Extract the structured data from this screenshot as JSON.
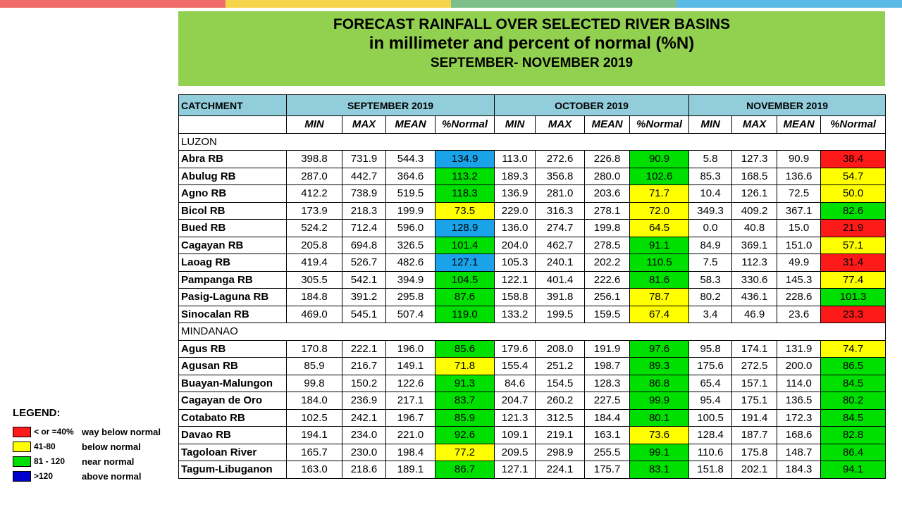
{
  "header": {
    "line1": "FORECAST RAINFALL OVER SELECTED RIVER BASINS",
    "line2": "in millimeter  and percent of normal (%N)",
    "line3": "SEPTEMBER- NOVEMBER 2019"
  },
  "colors": {
    "topbar": [
      "#f26b6b",
      "#f7d54a",
      "#7fbf8a",
      "#5bbbe6"
    ],
    "very_high": "#1aa3e8",
    "near_normal": "#00e000",
    "below_normal": "#ffff00",
    "way_below": "#ff1a1a",
    "above_normal_legend": "#0000cc"
  },
  "table": {
    "catchment_label": "CATCHMENT",
    "months": [
      "SEPTEMBER 2019",
      "OCTOBER 2019",
      "NOVEMBER 2019"
    ],
    "subheaders": [
      "MIN",
      "MAX",
      "MEAN",
      "%Normal"
    ],
    "groups": [
      {
        "region": "LUZON",
        "rows": [
          {
            "name": "Abra RB",
            "vals": [
              "398.8",
              "731.9",
              "544.3",
              "134.9",
              "113.0",
              "272.6",
              "226.8",
              "90.9",
              "5.8",
              "127.3",
              "90.9",
              "38.4"
            ],
            "cats": [
              "very_high",
              "near_normal",
              "way_below"
            ]
          },
          {
            "name": "Abulug RB",
            "vals": [
              "287.0",
              "442.7",
              "364.6",
              "113.2",
              "189.3",
              "356.8",
              "280.0",
              "102.6",
              "85.3",
              "168.5",
              "136.6",
              "54.7"
            ],
            "cats": [
              "near_normal",
              "near_normal",
              "below_normal"
            ]
          },
          {
            "name": "Agno RB",
            "vals": [
              "412.2",
              "738.9",
              "519.5",
              "118.3",
              "136.9",
              "281.0",
              "203.6",
              "71.7",
              "10.4",
              "126.1",
              "72.5",
              "50.0"
            ],
            "cats": [
              "near_normal",
              "below_normal",
              "below_normal"
            ]
          },
          {
            "name": "Bicol RB",
            "vals": [
              "173.9",
              "218.3",
              "199.9",
              "73.5",
              "229.0",
              "316.3",
              "278.1",
              "72.0",
              "349.3",
              "409.2",
              "367.1",
              "82.6"
            ],
            "cats": [
              "below_normal",
              "below_normal",
              "near_normal"
            ]
          },
          {
            "name": "Bued RB",
            "vals": [
              "524.2",
              "712.4",
              "596.0",
              "128.9",
              "136.0",
              "274.7",
              "199.8",
              "64.5",
              "0.0",
              "40.8",
              "15.0",
              "21.9"
            ],
            "cats": [
              "very_high",
              "below_normal",
              "way_below"
            ]
          },
          {
            "name": "Cagayan RB",
            "vals": [
              "205.8",
              "694.8",
              "326.5",
              "101.4",
              "204.0",
              "462.7",
              "278.5",
              "91.1",
              "84.9",
              "369.1",
              "151.0",
              "57.1"
            ],
            "cats": [
              "near_normal",
              "near_normal",
              "below_normal"
            ]
          },
          {
            "name": "Laoag RB",
            "vals": [
              "419.4",
              "526.7",
              "482.6",
              "127.1",
              "105.3",
              "240.1",
              "202.2",
              "110.5",
              "7.5",
              "112.3",
              "49.9",
              "31.4"
            ],
            "cats": [
              "very_high",
              "near_normal",
              "way_below"
            ]
          },
          {
            "name": "Pampanga RB",
            "vals": [
              "305.5",
              "542.1",
              "394.9",
              "104.5",
              "122.1",
              "401.4",
              "222.6",
              "81.6",
              "58.3",
              "330.6",
              "145.3",
              "77.4"
            ],
            "cats": [
              "near_normal",
              "near_normal",
              "below_normal"
            ]
          },
          {
            "name": "Pasig-Laguna RB",
            "vals": [
              "184.8",
              "391.2",
              "295.8",
              "87.6",
              "158.8",
              "391.8",
              "256.1",
              "78.7",
              "80.2",
              "436.1",
              "228.6",
              "101.3"
            ],
            "cats": [
              "near_normal",
              "below_normal",
              "near_normal"
            ]
          },
          {
            "name": "Sinocalan RB",
            "vals": [
              "469.0",
              "545.1",
              "507.4",
              "119.0",
              "133.2",
              "199.5",
              "159.5",
              "67.4",
              "3.4",
              "46.9",
              "23.6",
              "23.3"
            ],
            "cats": [
              "near_normal",
              "below_normal",
              "way_below"
            ]
          }
        ]
      },
      {
        "region": "MINDANAO",
        "rows": [
          {
            "name": "Agus RB",
            "vals": [
              "170.8",
              "222.1",
              "196.0",
              "85.6",
              "179.6",
              "208.0",
              "191.9",
              "97.6",
              "95.8",
              "174.1",
              "131.9",
              "74.7"
            ],
            "cats": [
              "near_normal",
              "near_normal",
              "below_normal"
            ]
          },
          {
            "name": "Agusan RB",
            "vals": [
              "85.9",
              "216.7",
              "149.1",
              "71.8",
              "155.4",
              "251.2",
              "198.7",
              "89.3",
              "175.6",
              "272.5",
              "200.0",
              "86.5"
            ],
            "cats": [
              "below_normal",
              "near_normal",
              "near_normal"
            ]
          },
          {
            "name": "Buayan-Malungon",
            "vals": [
              "99.8",
              "150.2",
              "122.6",
              "91.3",
              "84.6",
              "154.5",
              "128.3",
              "86.8",
              "65.4",
              "157.1",
              "114.0",
              "84.5"
            ],
            "cats": [
              "near_normal",
              "near_normal",
              "near_normal"
            ]
          },
          {
            "name": "Cagayan de Oro",
            "vals": [
              "184.0",
              "236.9",
              "217.1",
              "83.7",
              "204.7",
              "260.2",
              "227.5",
              "99.9",
              "95.4",
              "175.1",
              "136.5",
              "80.2"
            ],
            "cats": [
              "near_normal",
              "near_normal",
              "near_normal"
            ]
          },
          {
            "name": "Cotabato RB",
            "vals": [
              "102.5",
              "242.1",
              "196.7",
              "85.9",
              "121.3",
              "312.5",
              "184.4",
              "80.1",
              "100.5",
              "191.4",
              "172.3",
              "84.5"
            ],
            "cats": [
              "near_normal",
              "near_normal",
              "near_normal"
            ]
          },
          {
            "name": "Davao RB",
            "vals": [
              "194.1",
              "234.0",
              "221.0",
              "92.6",
              "109.1",
              "219.1",
              "163.1",
              "73.6",
              "128.4",
              "187.7",
              "168.6",
              "82.8"
            ],
            "cats": [
              "near_normal",
              "below_normal",
              "near_normal"
            ]
          },
          {
            "name": "Tagoloan River",
            "vals": [
              "165.7",
              "230.0",
              "198.4",
              "77.2",
              "209.5",
              "298.9",
              "255.5",
              "99.1",
              "110.6",
              "175.8",
              "148.7",
              "86.4"
            ],
            "cats": [
              "below_normal",
              "near_normal",
              "near_normal"
            ]
          },
          {
            "name": "Tagum-Libuganon",
            "vals": [
              "163.0",
              "218.6",
              "189.1",
              "86.7",
              "127.1",
              "224.1",
              "175.7",
              "83.1",
              "151.8",
              "202.1",
              "184.3",
              "94.1"
            ],
            "cats": [
              "near_normal",
              "near_normal",
              "near_normal"
            ]
          }
        ]
      }
    ]
  },
  "legend": {
    "title": "LEGEND:",
    "items": [
      {
        "range": "< or =40%",
        "desc": "way below normal",
        "cat": "way_below"
      },
      {
        "range": "41-80",
        "desc": "below normal",
        "cat": "below_normal"
      },
      {
        "range": "81 - 120",
        "desc": "near normal",
        "cat": "near_normal"
      },
      {
        "range": ">120",
        "desc": "above normal",
        "cat": "above_normal_legend"
      }
    ]
  }
}
